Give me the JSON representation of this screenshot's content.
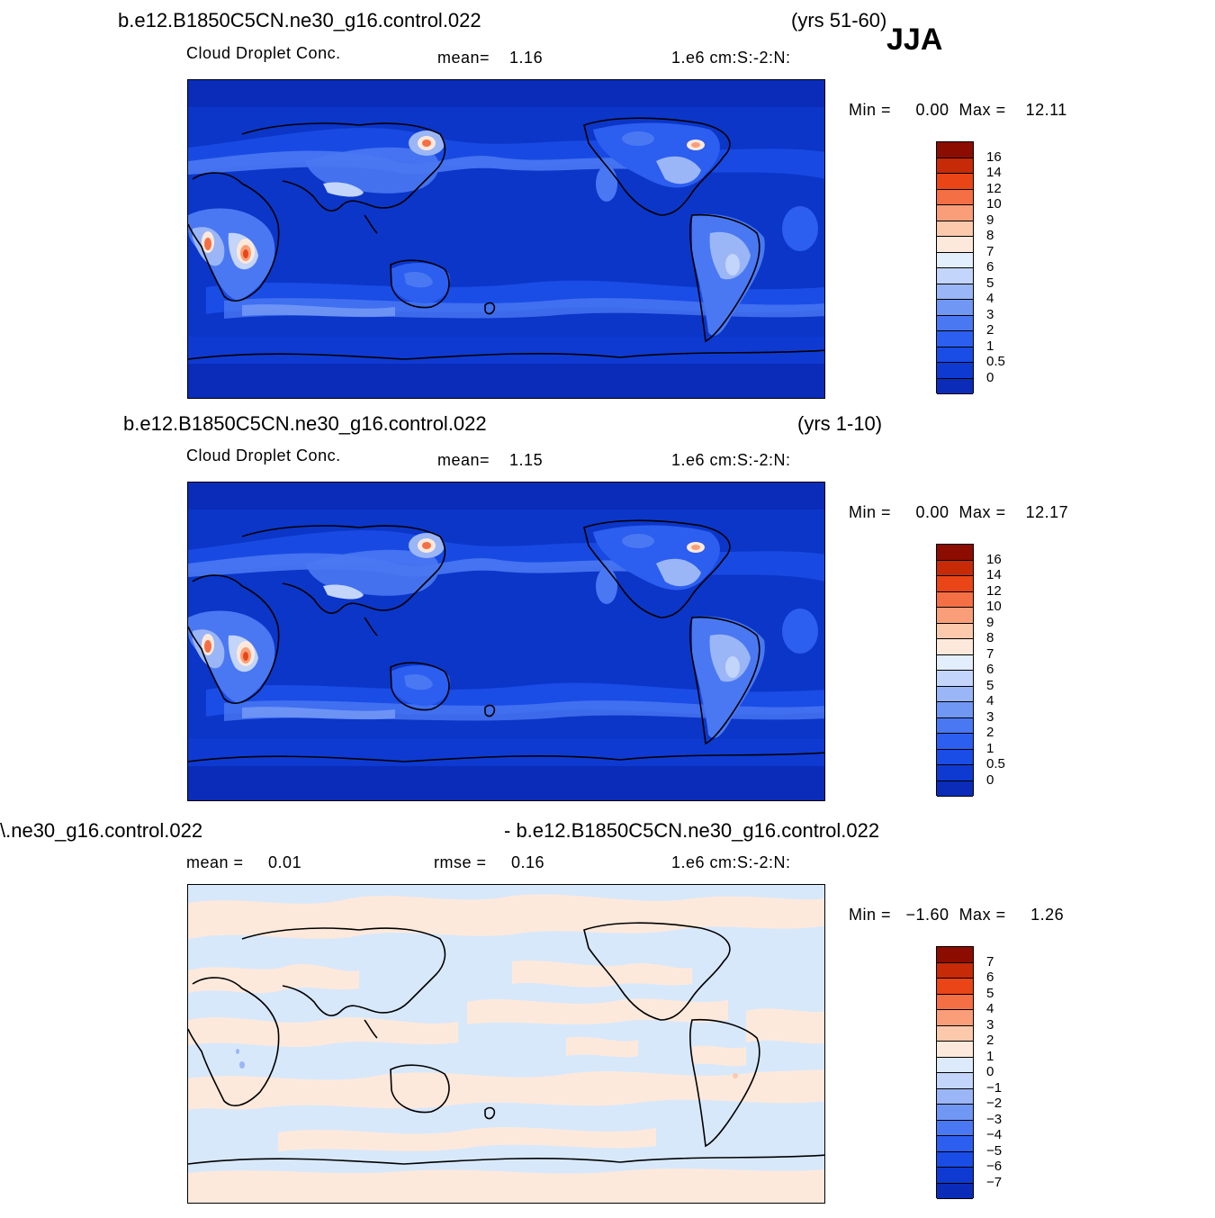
{
  "season": "JJA",
  "colors": {
    "seq": [
      "#000a8a",
      "#0a2cb8",
      "#0e3ad2",
      "#1a4ce6",
      "#2c5ef0",
      "#4a78f2",
      "#7197f5",
      "#9bb6f7",
      "#c3d5fa",
      "#e3eefc",
      "#fde9db",
      "#fcc9ad",
      "#f99e78",
      "#f56f45",
      "#ea4517",
      "#c62a07",
      "#8c0c00"
    ],
    "diff": [
      "#000a8a",
      "#0a2cb8",
      "#0e3ad2",
      "#1a4ce6",
      "#2c5ef0",
      "#4a78f2",
      "#7197f5",
      "#9bb6f7",
      "#c3d5fa",
      "#ddeafb",
      "#fde9db",
      "#fcc9ad",
      "#f99e78",
      "#f56f45",
      "#ea4517",
      "#c62a07",
      "#8c0c00"
    ],
    "ocean": "#0b36c8",
    "diff_bg": "#d8e8fb"
  },
  "panels": [
    {
      "case": "b.e12.B1850C5CN.ne30_g16.control.022",
      "years": "(yrs 51-60)",
      "variable": "Cloud Droplet Conc.",
      "stat1": "mean=    1.16",
      "units": "1.e6 cm:S:-2:N:",
      "minmax": "Min =     0.00  Max =    12.11"
    },
    {
      "case": "b.e12.B1850C5CN.ne30_g16.control.022",
      "years": "(yrs 1-10)",
      "variable": "Cloud Droplet Conc.",
      "stat1": "mean=    1.15",
      "units": "1.e6 cm:S:-2:N:",
      "minmax": "Min =     0.00  Max =    12.17"
    },
    {
      "case": "\\.ne30_g16.control.022",
      "years": "- b.e12.B1850C5CN.ne30_g16.control.022",
      "variable": "mean =     0.01",
      "stat1": "rmse =     0.16",
      "units": "1.e6 cm:S:-2:N:",
      "minmax": "Min =   −1.60  Max =     1.26"
    }
  ],
  "chart_data": [
    {
      "type": "heatmap",
      "title": "b.e12.B1850C5CN.ne30_g16.control.022 (yrs 51-60)",
      "variable": "Cloud Droplet Conc.",
      "units": "1.e6 cm:S:-2:N:",
      "mean": 1.16,
      "min": 0.0,
      "max": 12.11,
      "colorbar_levels": [
        "16",
        "14",
        "12",
        "10",
        "9",
        "8",
        "7",
        "6",
        "5",
        "4",
        "3",
        "2",
        "1",
        "0.5",
        "0"
      ]
    },
    {
      "type": "heatmap",
      "title": "b.e12.B1850C5CN.ne30_g16.control.022 (yrs 1-10)",
      "variable": "Cloud Droplet Conc.",
      "units": "1.e6 cm:S:-2:N:",
      "mean": 1.15,
      "min": 0.0,
      "max": 12.17,
      "colorbar_levels": [
        "16",
        "14",
        "12",
        "10",
        "9",
        "8",
        "7",
        "6",
        "5",
        "4",
        "3",
        "2",
        "1",
        "0.5",
        "0"
      ]
    },
    {
      "type": "heatmap",
      "title": "\\.ne30_g16.control.022 - b.e12.B1850C5CN.ne30_g16.control.022",
      "units": "1.e6 cm:S:-2:N:",
      "mean": 0.01,
      "rmse": 0.16,
      "min": -1.6,
      "max": 1.26,
      "colorbar_levels": [
        "7",
        "6",
        "5",
        "4",
        "3",
        "2",
        "1",
        "0",
        "−1",
        "−2",
        "−3",
        "−4",
        "−5",
        "−6",
        "−7"
      ]
    }
  ]
}
